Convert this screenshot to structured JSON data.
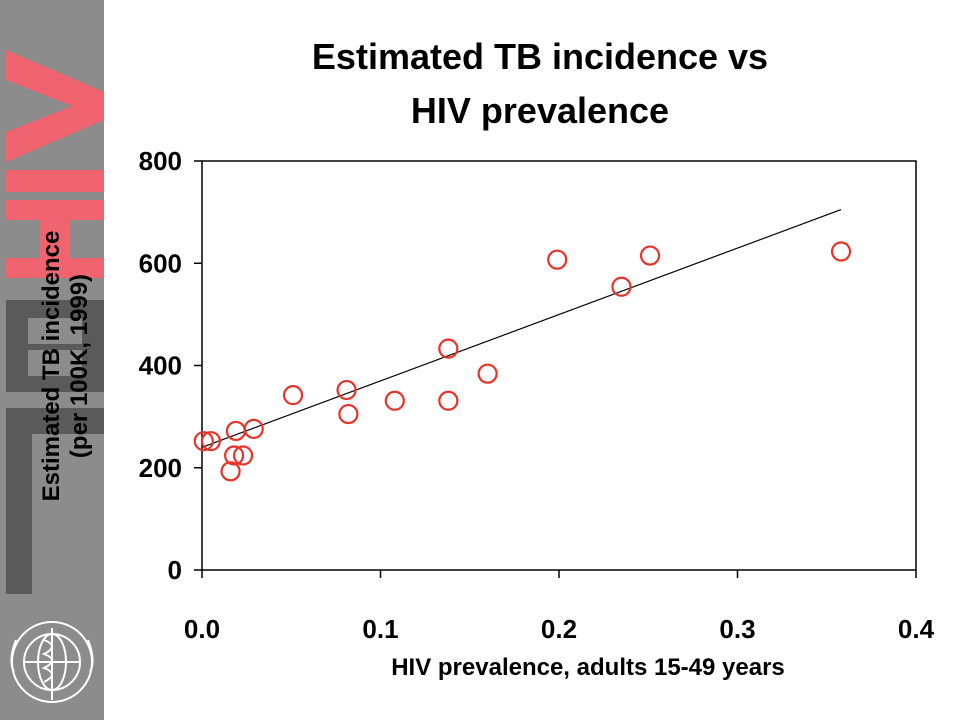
{
  "chart_data": {
    "type": "scatter",
    "title": [
      "Estimated TB incidence vs",
      "HIV prevalence"
    ],
    "xlabel": "HIV prevalence, adults 15-49 years",
    "ylabel": [
      "Estimated TB incidence",
      "(per 100K, 1999)"
    ],
    "xlim": [
      0,
      0.4
    ],
    "ylim": [
      0,
      800
    ],
    "xticks": [
      "0.0",
      "0.1",
      "0.2",
      "0.3",
      "0.4"
    ],
    "xtick_values": [
      0,
      0.1,
      0.2,
      0.3,
      0.4
    ],
    "yticks": [
      "0",
      "200",
      "400",
      "600",
      "800"
    ],
    "ytick_values": [
      0,
      200,
      400,
      600,
      800
    ],
    "grid": false,
    "legend": "none",
    "marker": "open-circle",
    "marker_color": "#e8332a",
    "points": [
      {
        "x": 0.001,
        "y": 252
      },
      {
        "x": 0.005,
        "y": 252
      },
      {
        "x": 0.016,
        "y": 193
      },
      {
        "x": 0.018,
        "y": 224
      },
      {
        "x": 0.019,
        "y": 272
      },
      {
        "x": 0.023,
        "y": 224
      },
      {
        "x": 0.029,
        "y": 276
      },
      {
        "x": 0.051,
        "y": 342
      },
      {
        "x": 0.081,
        "y": 352
      },
      {
        "x": 0.082,
        "y": 305
      },
      {
        "x": 0.108,
        "y": 331
      },
      {
        "x": 0.138,
        "y": 433
      },
      {
        "x": 0.138,
        "y": 331
      },
      {
        "x": 0.16,
        "y": 384
      },
      {
        "x": 0.199,
        "y": 607
      },
      {
        "x": 0.235,
        "y": 554
      },
      {
        "x": 0.251,
        "y": 615
      },
      {
        "x": 0.358,
        "y": 623
      }
    ],
    "trendline": {
      "x": [
        0.0,
        0.358
      ],
      "y": [
        240,
        705
      ]
    }
  },
  "decor": {
    "sidebar_color": "#8c8c8c",
    "sidebar_letters": "HIV TB",
    "letter_color": "#f06470",
    "emblem": "who-emblem"
  }
}
